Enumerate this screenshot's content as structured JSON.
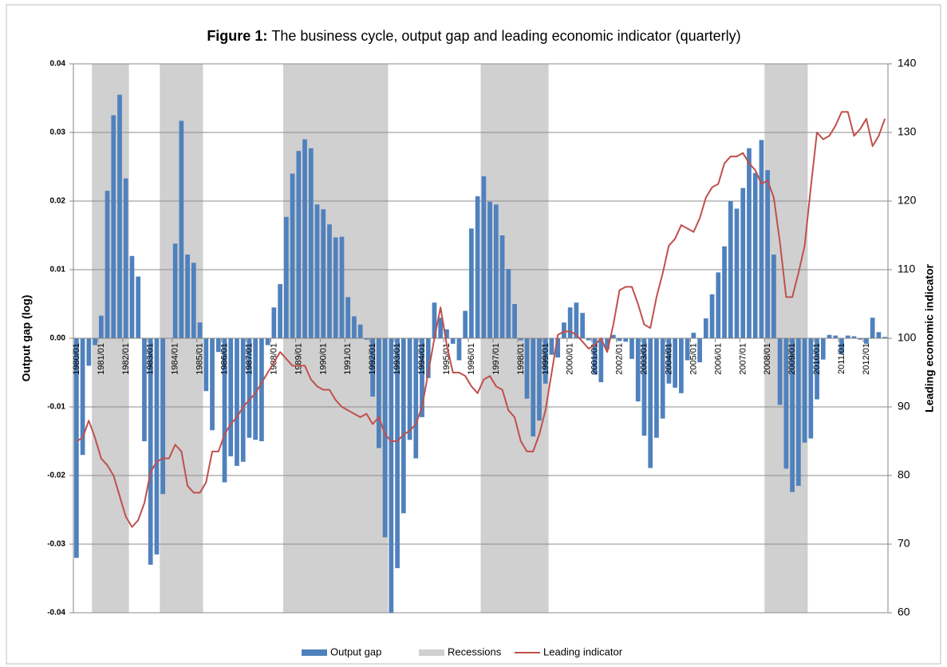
{
  "chart_data": {
    "type": "bar",
    "title_label": "Figure 1:",
    "title": "The business cycle, output gap and leading economic indicator (quarterly)",
    "y_label": "Output gap (log)",
    "y2_label": "Leading economic indicator",
    "xlim": [
      1980,
      2013
    ],
    "ylim": [
      -0.04,
      0.04
    ],
    "yticks": [
      -0.04,
      -0.03,
      -0.02,
      -0.01,
      {
        "value": 0,
        "label": "0.00"
      },
      0.01,
      0.02,
      0.03,
      0.04
    ],
    "y2lim": [
      60,
      140
    ],
    "y2ticks": [
      60,
      70,
      80,
      90,
      100,
      110,
      120,
      130,
      140
    ],
    "grid": true,
    "legend": "bottom",
    "categories": [
      "1980/01",
      null,
      null,
      null,
      "1981/01",
      null,
      null,
      null,
      "1982/01",
      null,
      null,
      null,
      "1983/01",
      null,
      null,
      null,
      "1984/01",
      null,
      null,
      null,
      "1985/01",
      null,
      null,
      null,
      "1986/01",
      null,
      null,
      null,
      "1987/01",
      null,
      null,
      null,
      "1988/01",
      null,
      null,
      null,
      "1989/01",
      null,
      null,
      null,
      "1990/01",
      null,
      null,
      null,
      "1991/01",
      null,
      null,
      null,
      "1992/01",
      null,
      null,
      null,
      "1993/01",
      null,
      null,
      null,
      "1994/01",
      null,
      null,
      null,
      "1995/01",
      null,
      null,
      null,
      "1996/01",
      null,
      null,
      null,
      "1997/01",
      null,
      null,
      null,
      "1998/01",
      null,
      null,
      null,
      "1999/01",
      null,
      null,
      null,
      "2000/01",
      null,
      null,
      null,
      "2001/01",
      null,
      null,
      null,
      "2002/01",
      null,
      null,
      null,
      "2003/01",
      null,
      null,
      null,
      "2004/01",
      null,
      null,
      null,
      "2005/01",
      null,
      null,
      null,
      "2006/01",
      null,
      null,
      null,
      "2007/01",
      null,
      null,
      null,
      "2008/01",
      null,
      null,
      null,
      "2009/01",
      null,
      null,
      null,
      "2010/01",
      null,
      null,
      null,
      "2011/01",
      null,
      null,
      null,
      "2012/01",
      null,
      null,
      null
    ],
    "series": [
      {
        "name": "Output gap",
        "type": "bar",
        "color": "#4f81bd",
        "values": [
          -0.032,
          -0.017,
          -0.004,
          -0.001,
          0.0033,
          0.0215,
          0.0325,
          0.0355,
          0.0233,
          0.012,
          0.009,
          -0.015,
          -0.033,
          -0.0315,
          -0.0227,
          0.0,
          0.0138,
          0.0317,
          0.0122,
          0.011,
          0.0023,
          -0.0077,
          -0.0134,
          -0.002,
          -0.021,
          -0.0172,
          -0.0186,
          -0.018,
          -0.0145,
          -0.0148,
          -0.015,
          -0.001,
          0.0045,
          0.0079,
          0.0177,
          0.024,
          0.0273,
          0.029,
          0.0277,
          0.0195,
          0.0188,
          0.0166,
          0.0147,
          0.0148,
          0.006,
          0.0032,
          0.002,
          -0.0002,
          -0.0085,
          -0.016,
          -0.029,
          -0.04,
          -0.0335,
          -0.0255,
          -0.0148,
          -0.0175,
          -0.0115,
          -0.0058,
          0.0052,
          0.003,
          0.0013,
          -0.0008,
          -0.0032,
          0.004,
          0.016,
          0.0207,
          0.0236,
          0.0199,
          0.0195,
          0.015,
          0.0101,
          0.005,
          -0.0003,
          -0.0088,
          -0.0143,
          -0.012,
          -0.0066,
          -0.0024,
          -0.0028,
          0.0023,
          0.0045,
          0.0052,
          0.0037,
          -0.0003,
          -0.0053,
          -0.0064,
          -0.0016,
          0.0005,
          -0.0004,
          -0.0005,
          -0.003,
          -0.0092,
          -0.0142,
          -0.0189,
          -0.0145,
          -0.0117,
          -0.0066,
          -0.0072,
          -0.008,
          -0.0032,
          0.0008,
          -0.0035,
          0.0029,
          0.0064,
          0.0096,
          0.0134,
          0.02,
          0.0189,
          0.0219,
          0.0277,
          0.0241,
          0.0289,
          0.0245,
          0.0122,
          -0.0097,
          -0.019,
          -0.0224,
          -0.0215,
          -0.0152,
          -0.0146,
          -0.0089,
          -0.0031,
          0.0005,
          0.0004,
          -0.0023,
          0.0004,
          0.0003,
          -0.0002,
          -0.0008,
          0.003,
          0.0009,
          0.0002
        ]
      },
      {
        "name": "Recessions",
        "type": "span",
        "color": "#d0d0d0",
        "spans": [
          [
            1980.75,
            1982.25
          ],
          [
            1983.5,
            1985.25
          ],
          [
            1988.5,
            1992.75
          ],
          [
            1996.5,
            1999.25
          ],
          [
            2008,
            2009.75
          ]
        ]
      },
      {
        "name": "Leading indicator",
        "type": "line",
        "color": "#c0504d",
        "axis": "y2",
        "values": [
          85,
          85.5,
          88,
          85.5,
          82.5,
          81.5,
          80,
          77,
          74,
          72.5,
          73.5,
          76,
          80.5,
          82,
          82.5,
          82.5,
          84.5,
          83.5,
          78.5,
          77.5,
          77.5,
          79,
          83.5,
          83.5,
          86,
          87.5,
          88.5,
          90,
          91,
          92,
          93.5,
          95,
          96.5,
          98,
          97,
          96,
          96,
          96,
          94,
          93,
          92.5,
          92.5,
          91,
          90,
          89.5,
          89,
          88.5,
          89,
          87.5,
          88.5,
          86,
          85,
          85,
          86,
          86.5,
          87.5,
          90,
          95,
          100,
          104.5,
          99,
          95,
          95,
          94.5,
          93,
          92,
          94,
          94.5,
          93,
          92.5,
          89.5,
          88.5,
          85,
          83.5,
          83.5,
          86,
          89.5,
          95,
          100.5,
          101,
          101,
          100.5,
          99.5,
          98.5,
          99,
          100,
          98,
          102,
          107,
          107.5,
          107.5,
          105,
          102,
          101.5,
          106,
          109.5,
          113.5,
          114.5,
          116.5,
          116,
          115.5,
          117.5,
          120.5,
          122,
          122.5,
          125.5,
          126.5,
          126.5,
          127,
          125.5,
          124.5,
          122.5,
          123,
          120.5,
          114,
          106,
          106,
          109.5,
          113.5,
          122,
          130,
          129,
          129.5,
          131,
          133,
          133,
          129.5,
          130.5,
          132,
          128,
          129.5,
          132
        ]
      }
    ]
  }
}
